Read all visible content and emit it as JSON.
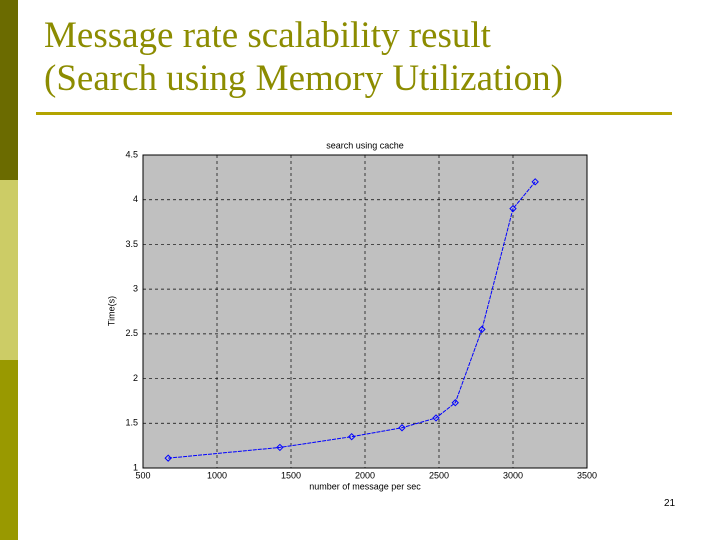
{
  "slide": {
    "title_lines": [
      "Message rate scalability result",
      "(Search using Memory Utilization)"
    ],
    "page_number": 21
  },
  "chart_data": {
    "type": "line",
    "title": "search using cache",
    "x_label": "number of message per sec",
    "y_label": "Time(s)",
    "x": [
      670,
      1425,
      1910,
      2250,
      2480,
      2610,
      2790,
      3000,
      3150
    ],
    "series": [
      {
        "name": "search using cache",
        "color": "#0000ff",
        "values": [
          1.11,
          1.23,
          1.35,
          1.45,
          1.56,
          1.73,
          2.55,
          3.9,
          4.2
        ]
      }
    ],
    "xlim": [
      500,
      3500
    ],
    "xticks": [
      500,
      1000,
      1500,
      2000,
      2500,
      3000,
      3500
    ],
    "ylim": [
      1,
      4.5
    ],
    "yticks": [
      1,
      1.5,
      2,
      2.5,
      3,
      3.5,
      4,
      4.5
    ],
    "grid": true
  }
}
